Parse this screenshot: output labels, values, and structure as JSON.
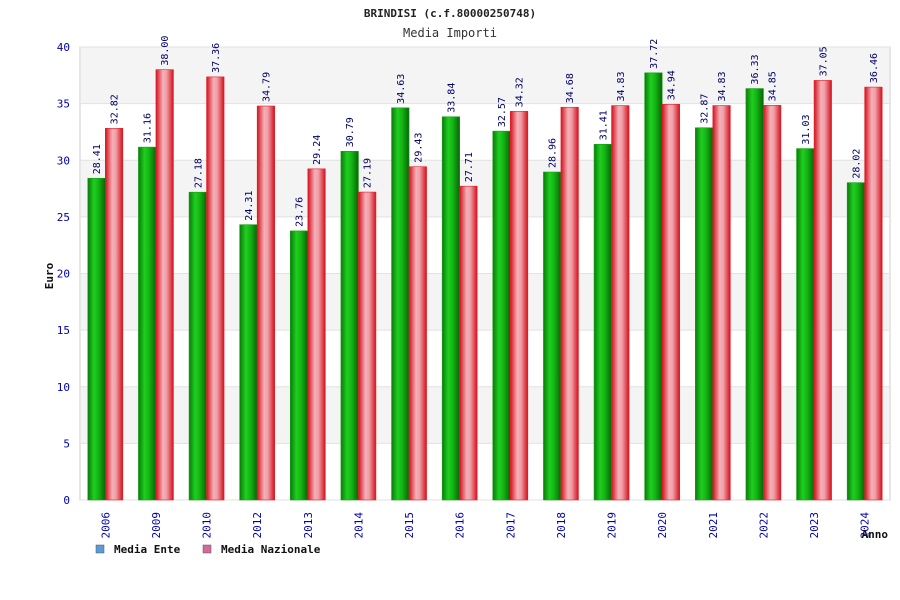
{
  "chart_data": {
    "type": "bar",
    "title": "BRINDISI (c.f.80000250748)",
    "subtitle": "Media Importi",
    "xlabel": "Anno",
    "ylabel": "Euro",
    "ylim": [
      0,
      40
    ],
    "yticks": [
      0,
      5,
      10,
      15,
      20,
      25,
      30,
      35,
      40
    ],
    "grid": true,
    "legend_position": "bottom-left",
    "categories": [
      "2006",
      "2009",
      "2010",
      "2012",
      "2013",
      "2014",
      "2015",
      "2016",
      "2017",
      "2018",
      "2019",
      "2020",
      "2021",
      "2022",
      "2023",
      "2024"
    ],
    "series": [
      {
        "name": "Media Ente",
        "legend_color": "#5b9bd5",
        "bar_color": "#1a9e1a",
        "labels": [
          "28.41",
          "31.16",
          "27.18",
          "24.31",
          "23.76",
          "30.79",
          "34.63",
          "33.84",
          "32.57",
          "28.96",
          "31.41",
          "37.72",
          "32.87",
          "36.33",
          "31.03",
          "28.02"
        ],
        "values": [
          28.41,
          31.16,
          27.18,
          24.31,
          23.76,
          30.79,
          34.63,
          33.84,
          32.57,
          28.96,
          31.41,
          37.72,
          32.87,
          36.33,
          31.03,
          28.02
        ]
      },
      {
        "name": "Media Nazionale",
        "legend_color": "#d36a9c",
        "bar_color": "#e3202a",
        "labels": [
          "32.82",
          "38.00",
          "37.36",
          "34.79",
          "29.24",
          "27.19",
          "29.43",
          "27.71",
          "34.32",
          "34.68",
          "34.83",
          "34.94",
          "34.83",
          "34.85",
          "37.05",
          "36.46"
        ],
        "values": [
          32.82,
          38.0,
          37.36,
          34.79,
          29.24,
          27.19,
          29.43,
          27.71,
          34.32,
          34.68,
          34.83,
          34.94,
          34.83,
          34.85,
          37.05,
          36.46
        ]
      }
    ]
  }
}
